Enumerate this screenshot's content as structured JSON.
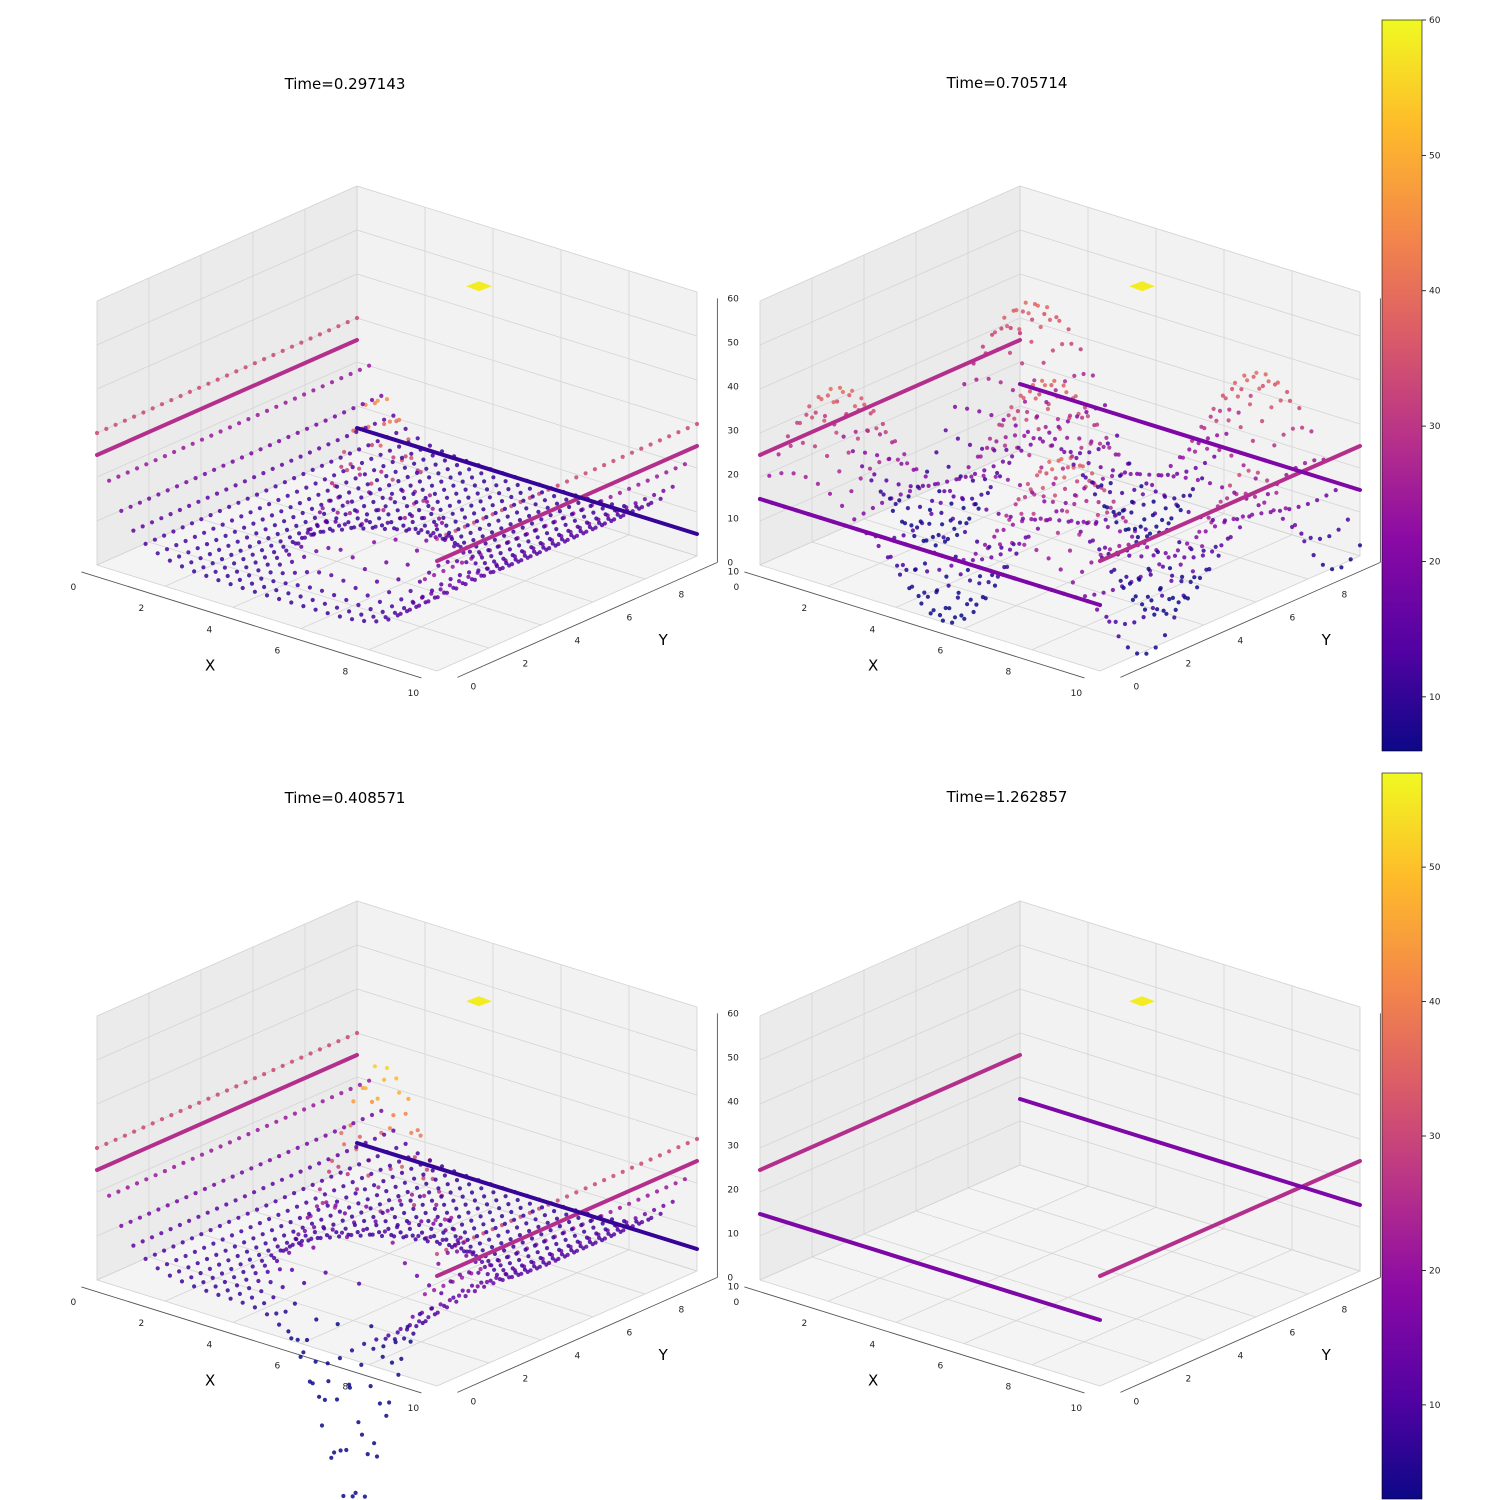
{
  "colormap": {
    "name": "plasma",
    "stops": [
      "#0d0887",
      "#5302a3",
      "#8b0aa5",
      "#b83289",
      "#db5c68",
      "#f48849",
      "#febd2a",
      "#f0f921"
    ]
  },
  "chart_data": [
    {
      "type": "scatter3d",
      "title": "Time=0.297143",
      "xlabel": "X",
      "ylabel": "Y",
      "zlabel": "",
      "xlim": [
        0,
        10
      ],
      "ylim": [
        0,
        10
      ],
      "zlim": [
        0,
        60
      ],
      "xticks": [
        "0",
        "2",
        "4",
        "6",
        "8",
        "10"
      ],
      "yticks": [
        "0",
        "2",
        "4",
        "6",
        "8",
        "10"
      ],
      "zticks": [
        "0",
        "10",
        "20",
        "30",
        "40",
        "50",
        "60"
      ],
      "grid": true,
      "surface": {
        "base": 5,
        "wall": 25,
        "wall_width": 0.7,
        "bump_x": 6,
        "bump_y": 3,
        "bump_amp": 40,
        "bump_radius": 1.3,
        "amp": 0,
        "phase": 0
      },
      "lines": [
        {
          "axis": "x",
          "at": 0,
          "z": 25,
          "from": 0,
          "to": 10
        },
        {
          "axis": "x",
          "at": 10,
          "z": 25,
          "from": 0,
          "to": 10
        },
        {
          "axis": "y",
          "at": 10,
          "z": 5,
          "from": 0,
          "to": 10
        }
      ],
      "marker": {
        "x": 5.5,
        "y": 7.5,
        "z": 57
      }
    },
    {
      "type": "scatter3d",
      "title": "Time=0.705714",
      "xlabel": "X",
      "ylabel": "Y",
      "zlabel": "",
      "xlim": [
        0,
        10
      ],
      "ylim": [
        0,
        10
      ],
      "zlim": [
        0,
        60
      ],
      "xticks": [
        "0",
        "2",
        "4",
        "6",
        "8",
        "10"
      ],
      "yticks": [
        "0",
        "2",
        "4",
        "6",
        "8",
        "10"
      ],
      "zticks": [
        "0",
        "10",
        "20",
        "30",
        "40",
        "50",
        "60"
      ],
      "grid": true,
      "surface": {
        "base": 15,
        "wall": 0,
        "wall_width": 0.7,
        "bump_x": 5,
        "bump_y": 5,
        "bump_amp": 0,
        "bump_radius": 1.0,
        "amp": 45,
        "phase": 0.7
      },
      "lines": [
        {
          "axis": "x",
          "at": 0,
          "z": 25,
          "from": 0,
          "to": 10
        },
        {
          "axis": "x",
          "at": 10,
          "z": 25,
          "from": 0,
          "to": 10
        },
        {
          "axis": "y",
          "at": 0,
          "z": 15,
          "from": 0,
          "to": 10
        },
        {
          "axis": "y",
          "at": 10,
          "z": 15,
          "from": 0,
          "to": 10
        }
      ],
      "marker": {
        "x": 5.5,
        "y": 7.5,
        "z": 57
      }
    },
    {
      "type": "scatter3d",
      "title": "Time=0.408571",
      "xlabel": "X",
      "ylabel": "Y",
      "zlabel": "",
      "xlim": [
        0,
        10
      ],
      "ylim": [
        0,
        10
      ],
      "zlim": [
        0,
        60
      ],
      "xticks": [
        "0",
        "2",
        "4",
        "6",
        "8",
        "10"
      ],
      "yticks": [
        "0",
        "2",
        "4",
        "6",
        "8",
        "10"
      ],
      "zticks": [
        "0",
        "10",
        "20",
        "30",
        "40",
        "50",
        "60"
      ],
      "grid": true,
      "surface": {
        "base": 5,
        "wall": 25,
        "wall_width": 0.7,
        "bump_x": 6,
        "bump_y": 3,
        "bump_amp": 55,
        "bump_radius": 1.5,
        "dip": true,
        "amp": 0,
        "phase": 0
      },
      "lines": [
        {
          "axis": "x",
          "at": 0,
          "z": 25,
          "from": 0,
          "to": 10
        },
        {
          "axis": "x",
          "at": 10,
          "z": 25,
          "from": 0,
          "to": 10
        },
        {
          "axis": "y",
          "at": 10,
          "z": 5,
          "from": 0,
          "to": 10
        }
      ],
      "marker": {
        "x": 5.5,
        "y": 7.5,
        "z": 57
      }
    },
    {
      "type": "scatter3d",
      "title": "Time=1.262857",
      "xlabel": "X",
      "ylabel": "Y",
      "zlabel": "",
      "xlim": [
        0,
        10
      ],
      "ylim": [
        0,
        10
      ],
      "zlim": [
        0,
        60
      ],
      "xticks": [
        "0",
        "2",
        "4",
        "6",
        "8",
        "10"
      ],
      "yticks": [
        "0",
        "2",
        "4",
        "6",
        "8",
        "10"
      ],
      "zticks": [
        "0",
        "10",
        "20",
        "30",
        "40",
        "50",
        "60"
      ],
      "grid": true,
      "surface": null,
      "lines": [
        {
          "axis": "x",
          "at": 0,
          "z": 25,
          "from": 0,
          "to": 10
        },
        {
          "axis": "x",
          "at": 10,
          "z": 25,
          "from": 0,
          "to": 10
        },
        {
          "axis": "y",
          "at": 0,
          "z": 15,
          "from": 0,
          "to": 10
        },
        {
          "axis": "y",
          "at": 10,
          "z": 15,
          "from": 0,
          "to": 10
        }
      ],
      "marker": {
        "x": 5.5,
        "y": 7.5,
        "z": 57
      }
    }
  ],
  "colorbars": [
    {
      "min": 6,
      "max": 60,
      "ticks": [
        "10",
        "20",
        "30",
        "40",
        "50",
        "60"
      ],
      "tick_values": [
        10,
        20,
        30,
        40,
        50,
        60
      ]
    },
    {
      "min": 3,
      "max": 57,
      "ticks": [
        "10",
        "20",
        "30",
        "40",
        "50"
      ],
      "tick_values": [
        10,
        20,
        30,
        40,
        50
      ]
    }
  ]
}
